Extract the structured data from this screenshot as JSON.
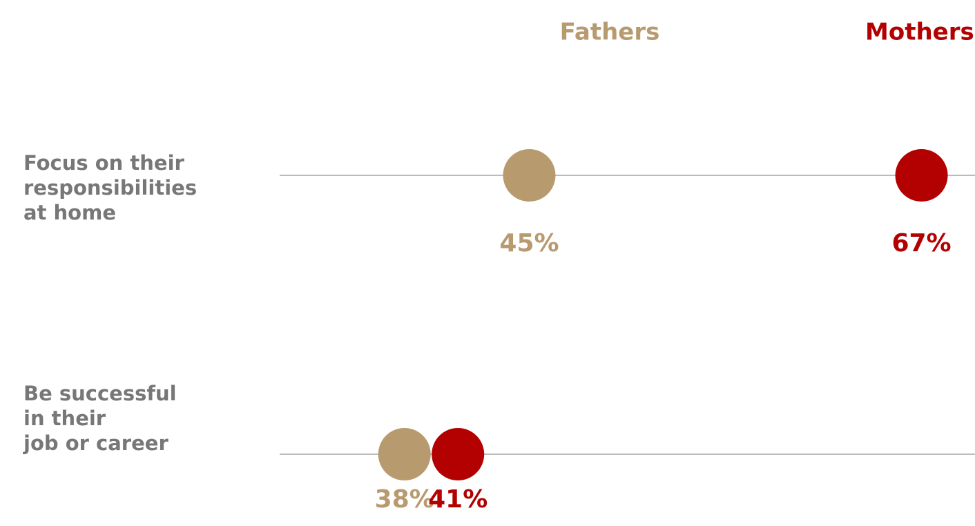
{
  "chart_data": {
    "type": "dot",
    "categories": [
      "Focus on their\nresponsibilities\nat home",
      "Be successful\nin their\njob or career"
    ],
    "series": [
      {
        "name": "Fathers",
        "color": "#b89a6f",
        "values": [
          45,
          38
        ],
        "value_labels": [
          "45%",
          "38%"
        ]
      },
      {
        "name": "Mothers",
        "color": "#b30000",
        "values": [
          67,
          41
        ],
        "value_labels": [
          "67%",
          "41%"
        ]
      }
    ],
    "xlim": [
      31,
      70
    ]
  }
}
